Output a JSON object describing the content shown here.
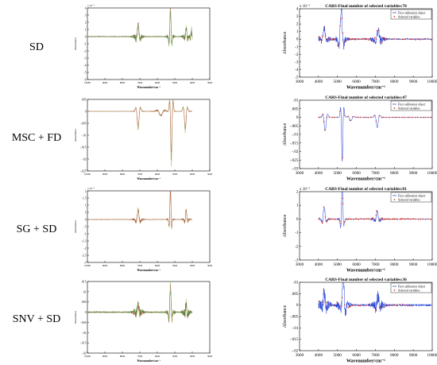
{
  "rows": [
    {
      "label": "SD"
    },
    {
      "label": "MSC + FD"
    },
    {
      "label": "SG + SD"
    },
    {
      "label": "SNV + SD"
    }
  ],
  "chart_data": [
    {
      "type": "line",
      "panel": "left",
      "row": "SD",
      "title": "",
      "exponent": "x 10⁻³",
      "xlabel": "Wavenumber/cm⁻¹",
      "ylabel": "Absorbance",
      "xlim": [
        10000,
        3000
      ],
      "ylim": [
        -6,
        4
      ],
      "xticks": [
        10000,
        9000,
        8000,
        7000,
        6000,
        5000,
        4000,
        3000
      ],
      "yticks": [
        4,
        3,
        2,
        1,
        0,
        -1,
        -2,
        -3,
        -4,
        -5,
        -6
      ],
      "reversed_x": true,
      "bands": [
        {
          "center": 7100,
          "amp": 1.8,
          "width": 110
        },
        {
          "center": 5250,
          "amp": 4.5,
          "width": 75
        },
        {
          "center": 4350,
          "amp": 1.5,
          "width": 80
        },
        {
          "center": 4050,
          "amp": 1.0,
          "width": 60
        }
      ],
      "noise": 0.5,
      "baseline": 0.0,
      "colors": [
        "#6fbf3a",
        "#c23b2b",
        "#2f7a2f"
      ]
    },
    {
      "type": "line",
      "panel": "right",
      "row": "SD",
      "title": "CARS-Final number of selected variables:70",
      "exponent": "x 10⁻³",
      "xlabel": "Wavenumber/cm⁻¹",
      "ylabel": "Absorbance",
      "xlim": [
        3000,
        10000
      ],
      "ylim": [
        -5,
        4
      ],
      "xticks": [
        3000,
        4000,
        5000,
        6000,
        7000,
        8000,
        9000,
        10000
      ],
      "yticks": [
        4,
        3,
        2,
        1,
        0,
        -1,
        -2,
        -3,
        -4,
        -5
      ],
      "legend": [
        "First calibration object",
        "Selected variables"
      ],
      "legend_position": "top-right",
      "bands": [
        {
          "center": 5200,
          "amp": 4.0,
          "width": 120
        },
        {
          "center": 7150,
          "amp": 1.2,
          "width": 130
        },
        {
          "center": 4300,
          "amp": 1.5,
          "width": 120
        }
      ],
      "noise": 0.6,
      "baseline": 0.0,
      "selected_count": 70
    },
    {
      "type": "line",
      "panel": "left",
      "row": "MSC + FD",
      "title": "",
      "exponent": "",
      "xlabel": "Wavenumber/cm⁻¹",
      "ylabel": "Absorbance",
      "xlim": [
        10000,
        3000
      ],
      "ylim": [
        -0.025,
        0.005
      ],
      "xticks": [
        10000,
        9000,
        8000,
        7000,
        6000,
        5000,
        4000,
        3000
      ],
      "yticks": [
        0.005,
        0,
        -0.005,
        -0.01,
        -0.015,
        -0.02,
        -0.025
      ],
      "reversed_x": true,
      "bands": [
        {
          "center": 7100,
          "amp": -0.008,
          "width": 120
        },
        {
          "center": 5200,
          "amp": -0.023,
          "width": 90
        },
        {
          "center": 4400,
          "amp": -0.009,
          "width": 110
        },
        {
          "center": 5800,
          "amp": -0.002,
          "width": 200
        }
      ],
      "noise": 0.0004,
      "baseline": 0.0,
      "colors": [
        "#6fbf3a",
        "#8a5a2b",
        "#c23b2b"
      ]
    },
    {
      "type": "line",
      "panel": "right",
      "row": "MSC + FD",
      "title": "CARS-Final number of selected variables:47",
      "exponent": "",
      "xlabel": "Wavenumber/cm⁻¹",
      "ylabel": "Absorbance",
      "xlim": [
        3000,
        10000
      ],
      "ylim": [
        -0.03,
        0.01
      ],
      "xticks": [
        3000,
        4000,
        5000,
        6000,
        7000,
        8000,
        9000,
        10000
      ],
      "yticks": [
        0.01,
        0.005,
        0,
        -0.005,
        -0.01,
        -0.015,
        -0.02,
        -0.025,
        -0.03
      ],
      "legend": [
        "First calibration object",
        "Selected variables"
      ],
      "legend_position": "top-right",
      "bands": [
        {
          "center": 5250,
          "amp": -0.026,
          "width": 80
        },
        {
          "center": 7100,
          "amp": -0.006,
          "width": 120
        },
        {
          "center": 4350,
          "amp": -0.008,
          "width": 120
        },
        {
          "center": 5700,
          "amp": -0.002,
          "width": 150
        }
      ],
      "noise": 0.0003,
      "baseline": 0.0,
      "selected_count": 47
    },
    {
      "type": "line",
      "panel": "left",
      "row": "SG + SD",
      "title": "",
      "exponent": "x 10⁻³",
      "xlabel": "Wavenumber/cm⁻¹",
      "ylabel": "Absorbance",
      "xlim": [
        10000,
        3000
      ],
      "ylim": [
        -3,
        2
      ],
      "xticks": [
        10000,
        9000,
        8000,
        7000,
        6000,
        5000,
        4000,
        3000
      ],
      "yticks": [
        2,
        1.5,
        1,
        0.5,
        0,
        -0.5,
        -1,
        -1.5,
        -2,
        -2.5,
        -3
      ],
      "reversed_x": true,
      "bands": [
        {
          "center": 7100,
          "amp": 0.8,
          "width": 110
        },
        {
          "center": 5250,
          "amp": 2.6,
          "width": 70
        },
        {
          "center": 4350,
          "amp": 0.8,
          "width": 80
        }
      ],
      "noise": 0.15,
      "baseline": 0.0,
      "colors": [
        "#6fbf3a",
        "#8a5a2b",
        "#c23b2b"
      ]
    },
    {
      "type": "line",
      "panel": "right",
      "row": "SG + SD",
      "title": "CARS-Final number of selected variables:81",
      "exponent": "x 10⁻³",
      "xlabel": "Wavenumber/cm⁻¹",
      "ylabel": "Absorbance",
      "xlim": [
        3000,
        10000
      ],
      "ylim": [
        -3,
        2
      ],
      "xticks": [
        3000,
        4000,
        5000,
        6000,
        7000,
        8000,
        9000,
        10000
      ],
      "yticks": [
        2,
        1,
        0,
        -1,
        -2,
        -3
      ],
      "legend": [
        "First calibration object",
        "Selected variables"
      ],
      "legend_position": "top-right",
      "bands": [
        {
          "center": 5250,
          "amp": 2.5,
          "width": 80
        },
        {
          "center": 7100,
          "amp": 0.6,
          "width": 120
        },
        {
          "center": 4300,
          "amp": 0.9,
          "width": 100
        }
      ],
      "noise": 0.15,
      "baseline": 0.0,
      "selected_count": 81
    },
    {
      "type": "line",
      "panel": "left",
      "row": "SNV + SD",
      "title": "",
      "exponent": "",
      "xlabel": "Wavenumber/cm⁻¹",
      "ylabel": "Absorbance",
      "xlim": [
        10000,
        3000
      ],
      "ylim": [
        -0.02,
        0.015
      ],
      "xticks": [
        10000,
        9000,
        8000,
        7000,
        6000,
        5000,
        4000,
        3000
      ],
      "yticks": [
        0.015,
        0.01,
        0.005,
        0,
        -0.005,
        -0.01,
        -0.015,
        -0.02
      ],
      "reversed_x": true,
      "bands": [
        {
          "center": 7100,
          "amp": 0.004,
          "width": 110
        },
        {
          "center": 5250,
          "amp": 0.015,
          "width": 80
        },
        {
          "center": 4350,
          "amp": 0.005,
          "width": 80
        }
      ],
      "noise": 0.0025,
      "baseline": 0.0,
      "colors": [
        "#6fbf3a",
        "#c23b2b",
        "#2f7a2f"
      ]
    },
    {
      "type": "line",
      "panel": "right",
      "row": "SNV + SD",
      "title": "CARS-Final number of selected variables:36",
      "exponent": "",
      "xlabel": "Wavenumber/cm⁻¹",
      "ylabel": "Absorbance",
      "xlim": [
        3000,
        10000
      ],
      "ylim": [
        -0.02,
        0.01
      ],
      "xticks": [
        3000,
        4000,
        5000,
        6000,
        7000,
        8000,
        9000,
        10000
      ],
      "yticks": [
        0.01,
        0.005,
        0,
        -0.005,
        -0.01,
        -0.015,
        -0.02
      ],
      "legend": [
        "First calibration object",
        "Selected variables"
      ],
      "legend_position": "top-right",
      "bands": [
        {
          "center": 5300,
          "amp": 0.012,
          "width": 120
        },
        {
          "center": 7150,
          "amp": 0.004,
          "width": 120
        },
        {
          "center": 4300,
          "amp": 0.005,
          "width": 120
        }
      ],
      "noise": 0.003,
      "baseline": 0.0,
      "selected_count": 36
    }
  ]
}
